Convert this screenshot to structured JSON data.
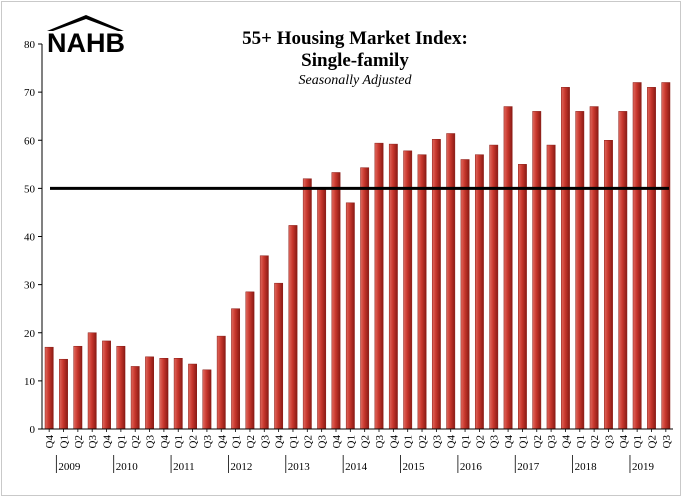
{
  "logo": {
    "text": "NAHB"
  },
  "colors": {
    "bar_fill": "#c8372d",
    "bar_dark": "#8a1a14",
    "bar_light": "#e06a5f",
    "reference_line": "#000000",
    "axis": "#000000"
  },
  "chart_data": {
    "type": "bar",
    "title": "55+ Housing Market Index:",
    "title_line2": "Single-family",
    "subtitle": "Seasonally Adjusted",
    "xlabel": "",
    "ylabel": "",
    "ylim": [
      0,
      80
    ],
    "yticks": [
      0,
      10,
      20,
      30,
      40,
      50,
      60,
      70,
      80
    ],
    "reference_line": 50,
    "grid": false,
    "legend": "none",
    "categories": [
      "Q4",
      "Q1",
      "Q2",
      "Q3",
      "Q4",
      "Q1",
      "Q2",
      "Q3",
      "Q4",
      "Q1",
      "Q2",
      "Q3",
      "Q4",
      "Q1",
      "Q2",
      "Q3",
      "Q4",
      "Q1",
      "Q2",
      "Q3",
      "Q4",
      "Q1",
      "Q2",
      "Q3",
      "Q4",
      "Q1",
      "Q2",
      "Q3",
      "Q4",
      "Q1",
      "Q2",
      "Q3",
      "Q4",
      "Q1",
      "Q2",
      "Q3",
      "Q4",
      "Q1",
      "Q2",
      "Q3",
      "Q4",
      "Q1",
      "Q2",
      "Q3"
    ],
    "years": [
      {
        "label": "2009",
        "index": 1
      },
      {
        "label": "2010",
        "index": 5
      },
      {
        "label": "2011",
        "index": 9
      },
      {
        "label": "2012",
        "index": 13
      },
      {
        "label": "2013",
        "index": 17
      },
      {
        "label": "2014",
        "index": 21
      },
      {
        "label": "2015",
        "index": 25
      },
      {
        "label": "2016",
        "index": 29
      },
      {
        "label": "2017",
        "index": 33
      },
      {
        "label": "2018",
        "index": 37
      },
      {
        "label": "2019",
        "index": 41
      }
    ],
    "values": [
      17,
      14.5,
      17.2,
      20,
      18.3,
      17.2,
      13,
      15,
      14.7,
      14.7,
      13.5,
      12.3,
      19.3,
      25,
      28.5,
      36,
      30.3,
      42.3,
      52,
      50,
      53.3,
      47,
      54.3,
      59.4,
      59.2,
      57.8,
      57,
      60.2,
      61.4,
      56,
      57,
      59,
      67,
      55,
      66,
      59,
      71,
      66,
      67,
      60,
      66,
      72,
      71,
      72
    ]
  }
}
